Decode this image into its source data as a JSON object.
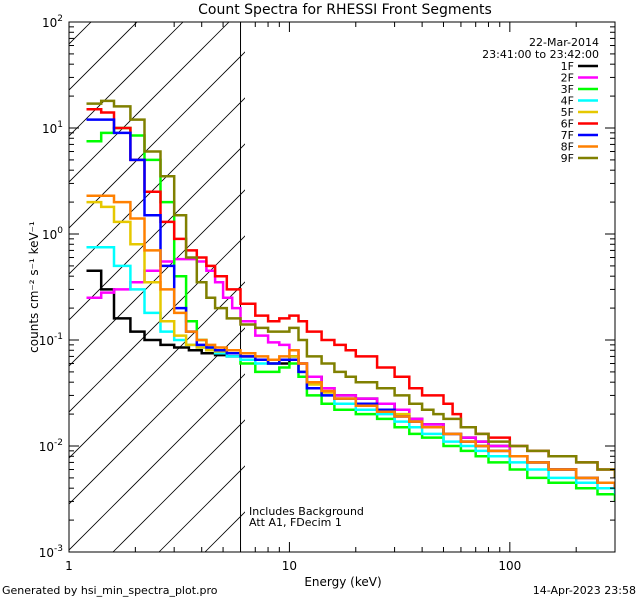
{
  "chart_data": {
    "type": "line",
    "title": "Count Spectra for RHESSI Front Segments",
    "xlabel": "Energy (keV)",
    "ylabel": "counts cm⁻² s⁻¹ keV⁻¹",
    "x_scale": "log",
    "y_scale": "log",
    "xlim": [
      1,
      300
    ],
    "ylim": [
      0.001,
      100
    ],
    "x_ticks": [
      {
        "v": 1,
        "label": "1"
      },
      {
        "v": 10,
        "label": "10"
      },
      {
        "v": 100,
        "label": "100"
      }
    ],
    "y_ticks": [
      {
        "v": 0.001,
        "base": "10",
        "exp": "-3"
      },
      {
        "v": 0.01,
        "base": "10",
        "exp": "-2"
      },
      {
        "v": 0.1,
        "base": "10",
        "exp": "-1"
      },
      {
        "v": 1,
        "base": "10",
        "exp": "0"
      },
      {
        "v": 10,
        "base": "10",
        "exp": "1"
      },
      {
        "v": 100,
        "base": "10",
        "exp": "2"
      }
    ],
    "date": "22-Mar-2014",
    "time_range": "23:41:00 to 23:42:00",
    "hatched_region": [
      1,
      6
    ],
    "annotation_lines": [
      "Includes Background",
      "Att A1, FDecim 1"
    ],
    "footer_left": "Generated by hsi_min_spectra_plot.pro",
    "footer_right": "14-Apr-2023 23:58",
    "series": [
      {
        "name": "1F",
        "color": "#000000",
        "x": [
          1.2,
          1.4,
          1.6,
          1.9,
          2.2,
          2.6,
          3.0,
          3.5,
          4.0,
          4.6,
          5.2,
          6.0,
          7.0,
          8.0,
          9.0,
          10,
          11,
          12,
          14,
          16,
          20,
          25,
          30,
          35,
          40,
          50,
          60,
          70,
          80,
          100,
          120,
          150,
          200,
          250,
          300
        ],
        "y": [
          0.45,
          0.3,
          0.16,
          0.12,
          0.1,
          0.09,
          0.085,
          0.08,
          0.075,
          0.072,
          0.07,
          0.07,
          0.065,
          0.06,
          0.06,
          0.07,
          0.06,
          0.045,
          0.035,
          0.03,
          0.028,
          0.025,
          0.022,
          0.018,
          0.016,
          0.013,
          0.012,
          0.011,
          0.01,
          0.008,
          0.007,
          0.006,
          0.005,
          0.0045,
          0.004
        ]
      },
      {
        "name": "2F",
        "color": "#ff00ff",
        "x": [
          1.2,
          1.4,
          1.6,
          1.9,
          2.2,
          2.6,
          3.0,
          3.4,
          3.8,
          4.2,
          4.6,
          5.0,
          5.5,
          6.0,
          7.0,
          8.0,
          9.0,
          10,
          11,
          12,
          14,
          16,
          20,
          25,
          30,
          35,
          40,
          50,
          60,
          70,
          80,
          100,
          120,
          150,
          200,
          250,
          300
        ],
        "y": [
          0.25,
          0.28,
          0.3,
          0.35,
          0.45,
          0.55,
          0.58,
          0.58,
          0.55,
          0.45,
          0.35,
          0.25,
          0.2,
          0.15,
          0.11,
          0.095,
          0.09,
          0.08,
          0.06,
          0.045,
          0.035,
          0.03,
          0.028,
          0.025,
          0.022,
          0.018,
          0.016,
          0.013,
          0.012,
          0.011,
          0.01,
          0.008,
          0.007,
          0.006,
          0.005,
          0.0045,
          0.004
        ]
      },
      {
        "name": "3F",
        "color": "#00ff00",
        "x": [
          1.2,
          1.4,
          1.6,
          1.9,
          2.2,
          2.6,
          3.0,
          3.4,
          3.8,
          4.2,
          4.6,
          5.2,
          6.0,
          7.0,
          8.0,
          9.0,
          10,
          11,
          12,
          14,
          16,
          20,
          25,
          30,
          35,
          40,
          50,
          60,
          70,
          80,
          100,
          120,
          150,
          200,
          250,
          300
        ],
        "y": [
          7.5,
          9.0,
          10.0,
          8.5,
          5.0,
          2.0,
          0.4,
          0.15,
          0.1,
          0.085,
          0.08,
          0.075,
          0.06,
          0.05,
          0.05,
          0.055,
          0.06,
          0.045,
          0.03,
          0.025,
          0.022,
          0.02,
          0.018,
          0.015,
          0.013,
          0.012,
          0.01,
          0.009,
          0.008,
          0.007,
          0.006,
          0.005,
          0.0045,
          0.004,
          0.0035,
          0.003
        ]
      },
      {
        "name": "4F",
        "color": "#00ffff",
        "x": [
          1.2,
          1.4,
          1.6,
          1.9,
          2.2,
          2.6,
          3.0,
          3.4,
          3.8,
          4.2,
          4.6,
          5.2,
          6.0,
          7.0,
          8.0,
          9.0,
          10,
          11,
          12,
          14,
          16,
          20,
          25,
          30,
          35,
          40,
          50,
          60,
          70,
          80,
          100,
          120,
          150,
          200,
          250,
          300
        ],
        "y": [
          0.75,
          0.75,
          0.5,
          0.3,
          0.18,
          0.12,
          0.1,
          0.09,
          0.085,
          0.08,
          0.075,
          0.07,
          0.065,
          0.06,
          0.06,
          0.065,
          0.065,
          0.05,
          0.035,
          0.03,
          0.025,
          0.022,
          0.02,
          0.017,
          0.015,
          0.013,
          0.011,
          0.01,
          0.009,
          0.008,
          0.007,
          0.006,
          0.005,
          0.0045,
          0.004,
          0.0035
        ]
      },
      {
        "name": "5F",
        "color": "#e6c800",
        "x": [
          1.2,
          1.4,
          1.6,
          1.9,
          2.2,
          2.6,
          3.0,
          3.4,
          3.8,
          4.2,
          4.6,
          5.2,
          6.0,
          7.0,
          8.0,
          9.0,
          10,
          11,
          12,
          14,
          16,
          20,
          25,
          30,
          35,
          40,
          50,
          60,
          70,
          80,
          100,
          120,
          150,
          200,
          250,
          300
        ],
        "y": [
          2.0,
          1.8,
          1.3,
          0.8,
          0.35,
          0.15,
          0.11,
          0.09,
          0.085,
          0.08,
          0.078,
          0.075,
          0.07,
          0.065,
          0.06,
          0.065,
          0.07,
          0.05,
          0.038,
          0.032,
          0.028,
          0.025,
          0.022,
          0.02,
          0.017,
          0.015,
          0.013,
          0.011,
          0.01,
          0.009,
          0.008,
          0.007,
          0.006,
          0.005,
          0.0045,
          0.004
        ]
      },
      {
        "name": "6F",
        "color": "#ff0000",
        "x": [
          1.2,
          1.4,
          1.6,
          1.9,
          2.2,
          2.6,
          3.0,
          3.4,
          3.8,
          4.2,
          4.6,
          5.2,
          6.0,
          7.0,
          8.0,
          9.0,
          10,
          11,
          12,
          14,
          16,
          18,
          20,
          25,
          30,
          35,
          40,
          50,
          55,
          60,
          70,
          80,
          100,
          120,
          150,
          200,
          250,
          300
        ],
        "y": [
          15,
          14,
          10,
          5,
          2.5,
          1.3,
          0.9,
          0.7,
          0.6,
          0.5,
          0.4,
          0.3,
          0.22,
          0.17,
          0.15,
          0.16,
          0.17,
          0.15,
          0.12,
          0.1,
          0.09,
          0.08,
          0.07,
          0.055,
          0.045,
          0.035,
          0.03,
          0.025,
          0.02,
          0.015,
          0.013,
          0.012,
          0.01,
          0.009,
          0.008,
          0.007,
          0.006,
          0.005
        ]
      },
      {
        "name": "7F",
        "color": "#0000ff",
        "x": [
          1.2,
          1.4,
          1.6,
          1.9,
          2.2,
          2.6,
          3.0,
          3.4,
          3.8,
          4.2,
          4.6,
          5.2,
          6.0,
          7.0,
          8.0,
          9.0,
          10,
          11,
          12,
          14,
          16,
          20,
          25,
          30,
          35,
          40,
          50,
          60,
          70,
          80,
          100,
          120,
          150,
          200,
          250,
          300
        ],
        "y": [
          12,
          12,
          9,
          5,
          1.5,
          0.5,
          0.2,
          0.12,
          0.09,
          0.085,
          0.08,
          0.075,
          0.07,
          0.065,
          0.06,
          0.065,
          0.065,
          0.05,
          0.035,
          0.03,
          0.028,
          0.025,
          0.022,
          0.019,
          0.017,
          0.015,
          0.013,
          0.011,
          0.01,
          0.009,
          0.008,
          0.007,
          0.006,
          0.005,
          0.0045,
          0.004
        ]
      },
      {
        "name": "8F",
        "color": "#ff8000",
        "x": [
          1.2,
          1.4,
          1.6,
          1.9,
          2.2,
          2.6,
          3.0,
          3.4,
          3.8,
          4.2,
          4.6,
          5.2,
          6.0,
          7.0,
          8.0,
          9.0,
          10,
          11,
          12,
          14,
          16,
          20,
          25,
          30,
          35,
          40,
          50,
          60,
          70,
          80,
          100,
          120,
          150,
          200,
          250,
          300
        ],
        "y": [
          2.3,
          2.3,
          2.0,
          1.4,
          0.7,
          0.3,
          0.18,
          0.12,
          0.1,
          0.09,
          0.085,
          0.08,
          0.075,
          0.07,
          0.065,
          0.07,
          0.08,
          0.06,
          0.04,
          0.033,
          0.028,
          0.024,
          0.021,
          0.019,
          0.017,
          0.015,
          0.013,
          0.011,
          0.01,
          0.009,
          0.008,
          0.007,
          0.006,
          0.005,
          0.0045,
          0.004
        ]
      },
      {
        "name": "9F",
        "color": "#808000",
        "x": [
          1.2,
          1.4,
          1.6,
          1.9,
          2.2,
          2.6,
          3.0,
          3.4,
          3.8,
          4.2,
          4.6,
          5.2,
          6.0,
          7.0,
          8.0,
          9.0,
          10,
          11,
          12,
          14,
          16,
          18,
          20,
          25,
          30,
          35,
          40,
          45,
          50,
          60,
          70,
          80,
          100,
          120,
          150,
          200,
          250,
          300
        ],
        "y": [
          17,
          18,
          16,
          12,
          6,
          3.5,
          1.5,
          0.6,
          0.35,
          0.25,
          0.2,
          0.16,
          0.14,
          0.13,
          0.12,
          0.12,
          0.13,
          0.1,
          0.07,
          0.06,
          0.05,
          0.045,
          0.04,
          0.035,
          0.03,
          0.025,
          0.022,
          0.02,
          0.018,
          0.015,
          0.013,
          0.011,
          0.01,
          0.009,
          0.008,
          0.007,
          0.006,
          0.005
        ]
      }
    ]
  }
}
